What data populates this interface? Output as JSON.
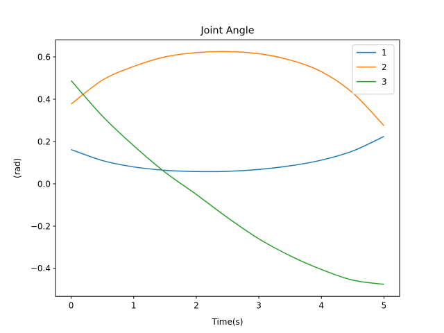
{
  "chart_data": {
    "type": "line",
    "title": "Joint Angle",
    "xlabel": "Time(s)",
    "ylabel": "(rad)",
    "xlim": [
      -0.25,
      5.25
    ],
    "ylim": [
      -0.532,
      0.68
    ],
    "xticks": [
      0,
      1,
      2,
      3,
      4,
      5
    ],
    "xtick_labels": [
      "0",
      "1",
      "2",
      "3",
      "4",
      "5"
    ],
    "yticks": [
      -0.4,
      -0.2,
      0.0,
      0.2,
      0.4,
      0.6
    ],
    "ytick_labels": [
      "−0.4",
      "−0.2",
      "0.0",
      "0.2",
      "0.4",
      "0.6"
    ],
    "grid": false,
    "legend_position": "top-right",
    "x": [
      0,
      0.5,
      1,
      1.5,
      2,
      2.5,
      3,
      3.5,
      4,
      4.5,
      5
    ],
    "series": [
      {
        "name": "1",
        "color": "#1f77b4",
        "values": [
          0.162,
          0.11,
          0.08,
          0.064,
          0.058,
          0.059,
          0.068,
          0.085,
          0.112,
          0.155,
          0.224
        ]
      },
      {
        "name": "2",
        "color": "#ff7f0e",
        "values": [
          0.377,
          0.49,
          0.555,
          0.6,
          0.62,
          0.625,
          0.615,
          0.585,
          0.53,
          0.43,
          0.275
        ]
      },
      {
        "name": "3",
        "color": "#2ca02c",
        "values": [
          0.488,
          0.32,
          0.18,
          0.055,
          -0.05,
          -0.16,
          -0.26,
          -0.34,
          -0.405,
          -0.455,
          -0.475
        ]
      }
    ]
  }
}
